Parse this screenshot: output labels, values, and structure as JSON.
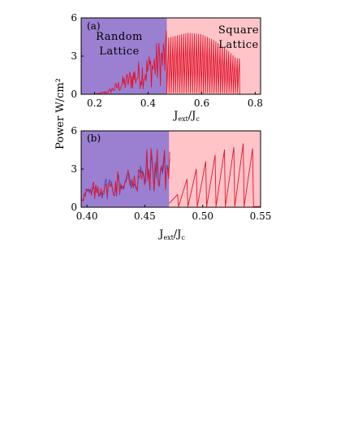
{
  "ylabel": "Power W/cm²",
  "colors": {
    "random_region": "#9b7fd0",
    "square_region": "#ffc4c8",
    "red_line": "#e0142c",
    "blue_line": "#3a4fb8",
    "axis": "#000000"
  },
  "chart_data": [
    {
      "type": "line",
      "panel_label": "(a)",
      "xlim": [
        0.15,
        0.82
      ],
      "ylim": [
        0,
        6
      ],
      "xticks": [
        "0.2",
        "0.4",
        "0.6",
        "0.8"
      ],
      "xtick_values": [
        0.2,
        0.4,
        0.6,
        0.8
      ],
      "yticks": [
        "0",
        "3",
        "6"
      ],
      "ytick_values": [
        0,
        3,
        6
      ],
      "xlabel_main": "J",
      "xlabel_sub1": "ext",
      "xlabel_mid": "/J",
      "xlabel_sub2": "c",
      "regions": [
        {
          "name": "random",
          "label_line1": "Random",
          "label_line2": "Lattice",
          "x_start": 0.15,
          "x_end": 0.47
        },
        {
          "name": "square",
          "label_line1": "Square",
          "label_line2": "Lattice",
          "x_start": 0.47,
          "x_end": 0.82
        }
      ],
      "series": [
        {
          "color": "red",
          "noisy_envelope": [
            [
              0.2,
              0.0
            ],
            [
              0.25,
              0.3
            ],
            [
              0.3,
              1.2
            ],
            [
              0.35,
              2.2
            ],
            [
              0.4,
              3.0
            ],
            [
              0.45,
              4.2
            ],
            [
              0.47,
              4.6
            ]
          ],
          "saw_period": 0.008,
          "saw_envelope": [
            [
              0.47,
              4.4
            ],
            [
              0.55,
              4.8
            ],
            [
              0.6,
              4.7
            ],
            [
              0.65,
              4.2
            ],
            [
              0.7,
              3.4
            ],
            [
              0.73,
              2.8
            ]
          ]
        }
      ]
    },
    {
      "type": "line",
      "panel_label": "(b)",
      "xlim": [
        0.395,
        0.55
      ],
      "ylim": [
        0,
        6
      ],
      "xticks": [
        "0.40",
        "0.45",
        "0.50",
        "0.55"
      ],
      "xtick_values": [
        0.4,
        0.45,
        0.5,
        0.55
      ],
      "yticks": [
        "0",
        "3",
        "6"
      ],
      "ytick_values": [
        0,
        3,
        6
      ],
      "xlabel_main": "J",
      "xlabel_sub1": "ext",
      "xlabel_mid": "/J",
      "xlabel_sub2": "c",
      "regions": [
        {
          "name": "random",
          "x_start": 0.395,
          "x_end": 0.471
        },
        {
          "name": "square",
          "x_start": 0.471,
          "x_end": 0.55
        }
      ],
      "series": [
        {
          "color": "blue",
          "x_range": [
            0.395,
            0.472
          ]
        },
        {
          "color": "red",
          "saw_period": 0.0081,
          "saw_first_x": 0.471,
          "saw_peaks": [
            1.0,
            2.2,
            3.0,
            3.6,
            4.1,
            4.5,
            4.7,
            5.0,
            4.6,
            4.4
          ]
        }
      ]
    }
  ]
}
